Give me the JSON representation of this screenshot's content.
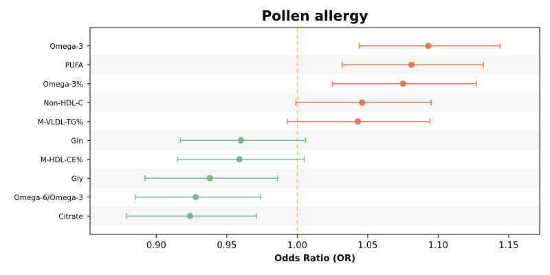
{
  "chart_data": {
    "type": "forest",
    "title": "Pollen allergy",
    "xlabel": "Odds Ratio (OR)",
    "xlim": [
      0.853,
      1.172
    ],
    "xticks": [
      "0.90",
      "0.95",
      "1.00",
      "1.05",
      "1.10",
      "1.15"
    ],
    "reference_line": 1.0,
    "colors": {
      "positive": "#e07a5f",
      "negative": "#81b29a",
      "reference": "#f2c27a",
      "band": "#f5f5f5"
    },
    "rows": [
      {
        "label": "Omega-3",
        "or": 1.093,
        "lower": 1.044,
        "upper": 1.144
      },
      {
        "label": "PUFA",
        "or": 1.081,
        "lower": 1.032,
        "upper": 1.132
      },
      {
        "label": "Omega-3%",
        "or": 1.075,
        "lower": 1.025,
        "upper": 1.127
      },
      {
        "label": "Non-HDL-C",
        "or": 1.046,
        "lower": 0.999,
        "upper": 1.095
      },
      {
        "label": "M-VLDL-TG%",
        "or": 1.043,
        "lower": 0.993,
        "upper": 1.094
      },
      {
        "label": "Gln",
        "or": 0.96,
        "lower": 0.917,
        "upper": 1.006
      },
      {
        "label": "M-HDL-CE%",
        "or": 0.959,
        "lower": 0.915,
        "upper": 1.005
      },
      {
        "label": "Gly",
        "or": 0.938,
        "lower": 0.892,
        "upper": 0.986
      },
      {
        "label": "Omega-6/Omega-3",
        "or": 0.928,
        "lower": 0.885,
        "upper": 0.974
      },
      {
        "label": "Citrate",
        "or": 0.924,
        "lower": 0.879,
        "upper": 0.971
      }
    ]
  }
}
